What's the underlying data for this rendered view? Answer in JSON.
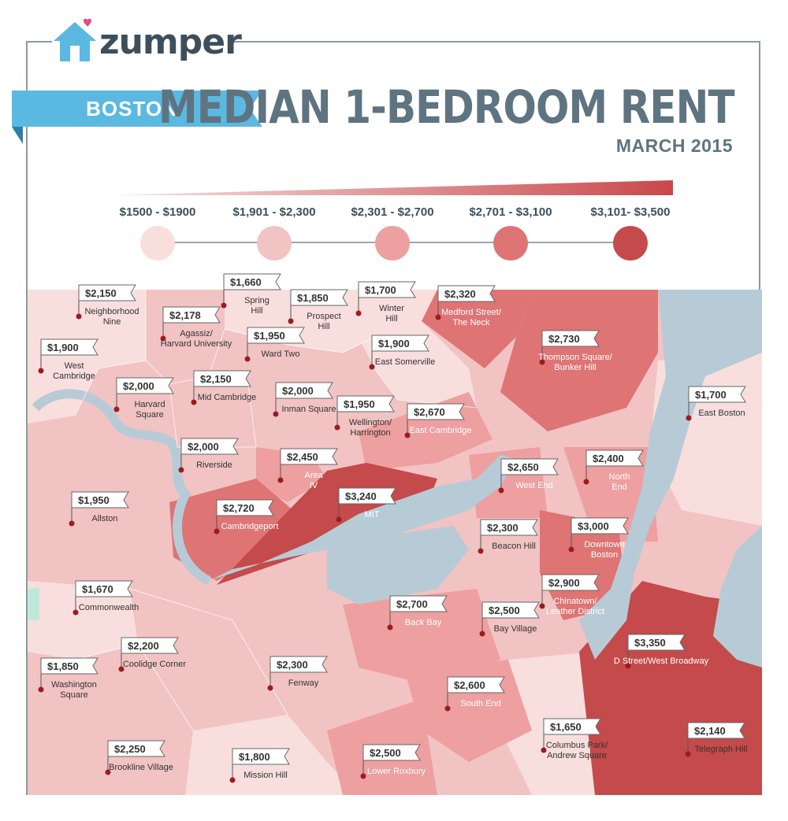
{
  "brand": {
    "name": "zumper"
  },
  "header": {
    "city": "BOSTON",
    "title": "MEDIAN 1-BEDROOM RENT",
    "subtitle": "MARCH 2015"
  },
  "legend": {
    "ranges": [
      {
        "label": "$1500 - $1900",
        "color": "#f8dfdd"
      },
      {
        "label": "$1,901 - $2,300",
        "color": "#f2c3c3"
      },
      {
        "label": "$2,301 - $2,700",
        "color": "#ee9fa0"
      },
      {
        "label": "$2,701 - $3,100",
        "color": "#de7474"
      },
      {
        "label": "$3,101- $3,500",
        "color": "#c44a4b"
      }
    ]
  },
  "colors": {
    "accent": "#5bb8e0",
    "water": "#b7cbd6",
    "text": "#3d4f5c"
  },
  "neighborhoods": [
    {
      "price": "$2,150",
      "name": "Neighborhood\nNine"
    },
    {
      "price": "$1,660",
      "name": "Spring\nHill"
    },
    {
      "price": "$1,850",
      "name": "Prospect\nHill"
    },
    {
      "price": "$1,700",
      "name": "Winter\nHill"
    },
    {
      "price": "$2,320",
      "name": "Medford Street/\nThe Neck"
    },
    {
      "price": "$2,178",
      "name": "Agassiz/\nHarvard University"
    },
    {
      "price": "$1,950",
      "name": "Ward Two"
    },
    {
      "price": "$1,900",
      "name": "West\nCambridge"
    },
    {
      "price": "$1,900",
      "name": "East Somerville"
    },
    {
      "price": "$2,730",
      "name": "Thompson Square/\nBunker Hill"
    },
    {
      "price": "$2,000",
      "name": "Harvard\nSquare"
    },
    {
      "price": "$2,150",
      "name": "Mid Cambridge"
    },
    {
      "price": "$2,000",
      "name": "Inman Square"
    },
    {
      "price": "$1,700",
      "name": "East Boston"
    },
    {
      "price": "$1,950",
      "name": "Wellington/\nHarrington"
    },
    {
      "price": "$2,670",
      "name": "East Cambridge"
    },
    {
      "price": "$2,000",
      "name": "Riverside"
    },
    {
      "price": "$2,450",
      "name": "Area\nIV"
    },
    {
      "price": "$2,650",
      "name": "West End"
    },
    {
      "price": "$2,400",
      "name": "North\nEnd"
    },
    {
      "price": "$1,950",
      "name": "Allston"
    },
    {
      "price": "$2,720",
      "name": "Cambridgeport"
    },
    {
      "price": "$3,240",
      "name": "MIT"
    },
    {
      "price": "$2,300",
      "name": "Beacon Hill"
    },
    {
      "price": "$3,000",
      "name": "Downtown\nBoston"
    },
    {
      "price": "$1,670",
      "name": "Commonwealth"
    },
    {
      "price": "$2,900",
      "name": "Chinatown/\nLeather District"
    },
    {
      "price": "$2,700",
      "name": "Back Bay"
    },
    {
      "price": "$2,500",
      "name": "Bay Village"
    },
    {
      "price": "$3,350",
      "name": "D Street/West Broadway"
    },
    {
      "price": "$2,200",
      "name": "Coolidge Corner"
    },
    {
      "price": "$2,300",
      "name": "Fenway"
    },
    {
      "price": "$1,850",
      "name": "Washington\nSquare"
    },
    {
      "price": "$2,600",
      "name": "South End"
    },
    {
      "price": "$1,650",
      "name": "Columbus Park/\nAndrew Square"
    },
    {
      "price": "$2,250",
      "name": "Brookline Village"
    },
    {
      "price": "$1,800",
      "name": "Mission Hill"
    },
    {
      "price": "$2,500",
      "name": "Lower Roxbury"
    },
    {
      "price": "$2,140",
      "name": "Telegraph Hill"
    }
  ]
}
